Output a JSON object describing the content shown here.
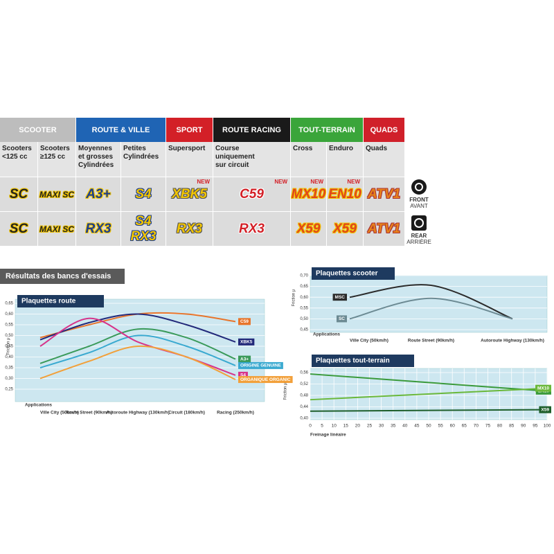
{
  "table": {
    "groups": [
      {
        "name": "SCOOTER",
        "color": "#bdbdbd",
        "columns": [
          {
            "label": "Scooters\n<125 cc",
            "front": "SC",
            "rear": "SC"
          },
          {
            "label": "Scooters\n≥125 cc",
            "front": "MAXI SC",
            "rear": "MAXI SC"
          }
        ]
      },
      {
        "name": "ROUTE & VILLE",
        "color": "#1f64b4",
        "columns": [
          {
            "label": "Moyennes\net grosses\nCylindrées",
            "front": "A3+",
            "rear": "RX3"
          },
          {
            "label": "Petites\nCylindrées",
            "front": "S4",
            "rear": [
              "S4",
              "RX3"
            ]
          }
        ]
      },
      {
        "name": "SPORT",
        "color": "#d32027",
        "columns": [
          {
            "label": "Supersport",
            "front": "XBK5",
            "rear": "RX3",
            "new": "NEW"
          }
        ]
      },
      {
        "name": "ROUTE RACING",
        "color": "#1a1a1a",
        "columns": [
          {
            "label": "Course\nuniquement\nsur circuit",
            "front": "C59",
            "rear": "RX3",
            "new": "NEW"
          }
        ]
      },
      {
        "name": "TOUT-TERRAIN",
        "color": "#3aa53a",
        "columns": [
          {
            "label": "Cross",
            "front": "MX10",
            "rear": "X59",
            "new": "NEW"
          },
          {
            "label": "Enduro",
            "front": "EN10",
            "rear": "X59",
            "new": "NEW"
          }
        ]
      },
      {
        "name": "QUADS",
        "color": "#d0202a",
        "columns": [
          {
            "label": "Quads",
            "front": "ATV1",
            "rear": "ATV1"
          }
        ]
      }
    ]
  },
  "side": {
    "front": {
      "title": "FRONT",
      "subtitle": "AVANT"
    },
    "rear": {
      "title": "REAR",
      "subtitle": "ARRIÈRE"
    }
  },
  "section_title": "Résultats des bancs d'essais",
  "chart_data": [
    {
      "type": "line",
      "title": "Plaquettes route",
      "y_label": "Friction μ",
      "x_label": "Applications",
      "categories": [
        "Ville City (50km/h)",
        "Route Street (90km/h)",
        "Autoroute Highway (130km/h)",
        "Circuit (180km/h)",
        "Racing (250km/h)"
      ],
      "ylim": [
        0.25,
        0.65
      ],
      "yticks": [
        {
          "value": 0.25,
          "label": "0,25"
        },
        {
          "value": 0.3,
          "label": "0,30"
        },
        {
          "value": 0.35,
          "label": "0,35"
        },
        {
          "value": 0.4,
          "label": "0,40"
        },
        {
          "value": 0.45,
          "label": "0,45"
        },
        {
          "value": 0.5,
          "label": "0,50"
        },
        {
          "value": 0.55,
          "label": "0,55"
        },
        {
          "value": 0.6,
          "label": "0,60"
        },
        {
          "value": 0.65,
          "label": "0,65"
        }
      ],
      "grid": true,
      "series": [
        {
          "name": "C59",
          "color": "#e8742a",
          "values": [
            0.49,
            0.55,
            0.6,
            0.6,
            0.565
          ]
        },
        {
          "name": "XBK5",
          "color": "#22297a",
          "values": [
            0.48,
            0.56,
            0.6,
            0.55,
            0.47
          ]
        },
        {
          "name": "A3+",
          "color": "#3a9a5a",
          "values": [
            0.37,
            0.45,
            0.53,
            0.49,
            0.39
          ]
        },
        {
          "name": "ORIGINE GENUINE",
          "color": "#39a9d0",
          "values": [
            0.35,
            0.42,
            0.5,
            0.45,
            0.36
          ]
        },
        {
          "name": "S4",
          "color": "#d6338a",
          "values": [
            0.45,
            0.58,
            0.47,
            0.4,
            0.315
          ]
        },
        {
          "name": "ORGANIQUE ORGANIC",
          "color": "#f2a03a",
          "values": [
            0.3,
            0.38,
            0.45,
            0.4,
            0.295
          ]
        }
      ]
    },
    {
      "type": "line",
      "title": "Plaquettes scooter",
      "y_label": "Friction μ",
      "x_label": "Applications",
      "categories": [
        "Ville City (50km/h)",
        "Route Street (90km/h)",
        "Autoroute Highway (130km/h)"
      ],
      "ylim": [
        0.45,
        0.7
      ],
      "yticks": [
        {
          "value": 0.45,
          "label": "0,45"
        },
        {
          "value": 0.5,
          "label": "0,50"
        },
        {
          "value": 0.55,
          "label": "0,55"
        },
        {
          "value": 0.6,
          "label": "0,60"
        },
        {
          "value": 0.65,
          "label": "0,65"
        },
        {
          "value": 0.7,
          "label": "0,70"
        }
      ],
      "grid": true,
      "series": [
        {
          "name": "MSC",
          "color": "#2b2b2b",
          "values": [
            0.6,
            0.655,
            0.5
          ]
        },
        {
          "name": "SC",
          "color": "#6c8a93",
          "values": [
            0.5,
            0.595,
            0.5
          ]
        }
      ]
    },
    {
      "type": "line",
      "title": "Plaquettes tout-terrain",
      "y_label": "Friction μ",
      "x_label": "Freinage linéaire",
      "x": [
        0,
        100
      ],
      "xlim": [
        0,
        100
      ],
      "xticks": [
        0,
        5,
        10,
        15,
        20,
        25,
        30,
        35,
        40,
        45,
        50,
        55,
        60,
        65,
        70,
        75,
        80,
        85,
        90,
        95,
        100
      ],
      "ylim": [
        0.4,
        0.56
      ],
      "yticks": [
        {
          "value": 0.4,
          "label": "0,40"
        },
        {
          "value": 0.44,
          "label": "0,44"
        },
        {
          "value": 0.48,
          "label": "0,48"
        },
        {
          "value": 0.52,
          "label": "0,52"
        },
        {
          "value": 0.56,
          "label": "0,56"
        }
      ],
      "grid": true,
      "series": [
        {
          "name": "EN10",
          "color": "#3a9a3a",
          "values": [
            0.555,
            0.495
          ]
        },
        {
          "name": "MX10",
          "color": "#6ab83a",
          "values": [
            0.465,
            0.505
          ]
        },
        {
          "name": "X59",
          "color": "#1d5e2a",
          "values": [
            0.425,
            0.43
          ]
        }
      ]
    }
  ]
}
